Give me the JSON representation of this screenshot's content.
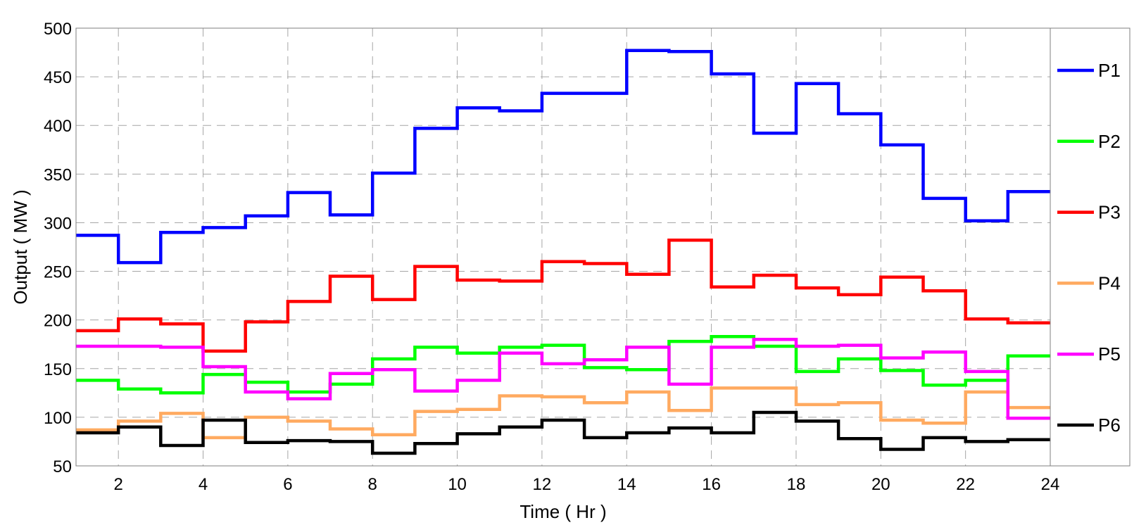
{
  "chart_data": {
    "type": "line",
    "step": true,
    "title": "",
    "xlabel": "Time ( Hr )",
    "ylabel": "Output ( MW )",
    "xlim": [
      1,
      24
    ],
    "ylim": [
      50,
      500
    ],
    "xticks": [
      2,
      4,
      6,
      8,
      10,
      12,
      14,
      16,
      18,
      20,
      22,
      24
    ],
    "yticks": [
      50,
      100,
      150,
      200,
      250,
      300,
      350,
      400,
      450,
      500
    ],
    "grid": true,
    "legend_position": "right",
    "x": [
      1,
      2,
      3,
      4,
      5,
      6,
      7,
      8,
      9,
      10,
      11,
      12,
      13,
      14,
      15,
      16,
      17,
      18,
      19,
      20,
      21,
      22,
      23
    ],
    "series": [
      {
        "name": "P1",
        "color": "#0000ff",
        "values": [
          287,
          259,
          290,
          295,
          307,
          331,
          308,
          351,
          397,
          418,
          415,
          433,
          433,
          477,
          476,
          453,
          392,
          443,
          412,
          380,
          325,
          302,
          332
        ]
      },
      {
        "name": "P2",
        "color": "#00ff00",
        "values": [
          138,
          129,
          125,
          144,
          136,
          126,
          134,
          160,
          172,
          166,
          172,
          174,
          151,
          149,
          178,
          183,
          173,
          147,
          160,
          148,
          133,
          138,
          163
        ]
      },
      {
        "name": "P3",
        "color": "#ff0000",
        "values": [
          189,
          201,
          196,
          168,
          198,
          219,
          245,
          221,
          255,
          241,
          240,
          260,
          258,
          247,
          282,
          234,
          246,
          233,
          226,
          244,
          230,
          201,
          197
        ]
      },
      {
        "name": "P4",
        "color": "#ffaa60",
        "values": [
          87,
          96,
          104,
          79,
          100,
          96,
          88,
          82,
          106,
          108,
          122,
          121,
          115,
          126,
          107,
          130,
          130,
          113,
          115,
          97,
          94,
          126,
          110
        ]
      },
      {
        "name": "P5",
        "color": "#ff00ff",
        "values": [
          173,
          173,
          172,
          152,
          126,
          119,
          145,
          149,
          127,
          138,
          166,
          155,
          159,
          172,
          134,
          172,
          180,
          173,
          174,
          161,
          167,
          147,
          99
        ]
      },
      {
        "name": "P6",
        "color": "#000000",
        "values": [
          84,
          90,
          71,
          97,
          74,
          76,
          75,
          63,
          73,
          83,
          90,
          97,
          79,
          84,
          89,
          84,
          105,
          96,
          78,
          67,
          79,
          75,
          77
        ]
      }
    ]
  }
}
